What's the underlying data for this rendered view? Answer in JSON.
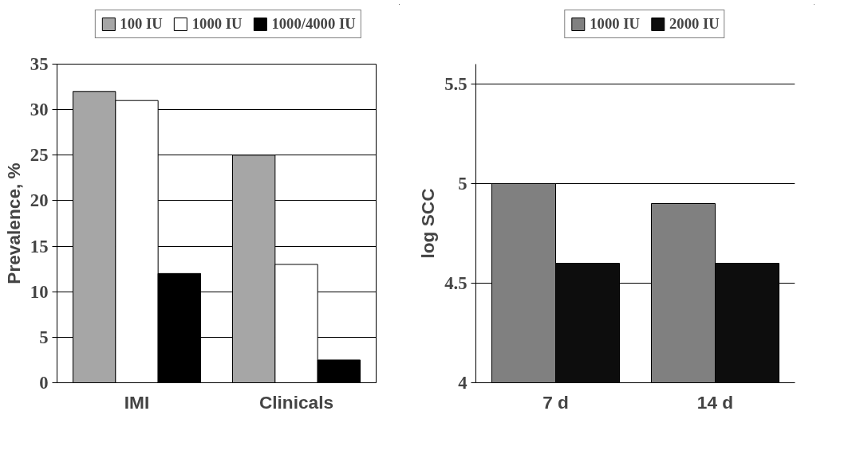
{
  "chart_data": [
    {
      "type": "bar",
      "ylabel": "Prevalence, %",
      "categories": [
        "IMI",
        "Clinicals"
      ],
      "ylim": [
        0,
        35
      ],
      "yticks": [
        0,
        5,
        10,
        15,
        20,
        25,
        30,
        35
      ],
      "grid": "y",
      "legend": "top",
      "series": [
        {
          "name": "100 IU",
          "color": "#a6a6a6",
          "values": [
            32,
            25
          ]
        },
        {
          "name": "1000 IU",
          "color": "#ffffff",
          "values": [
            31,
            13
          ]
        },
        {
          "name": "1000/4000 IU",
          "color": "#000000",
          "values": [
            12,
            2.5
          ]
        }
      ]
    },
    {
      "type": "bar",
      "ylabel": "log SCC",
      "categories": [
        "7 d",
        "14 d"
      ],
      "ylim": [
        4,
        5.6
      ],
      "yticks": [
        4,
        4.5,
        5,
        5.5
      ],
      "grid": "y",
      "legend": "top",
      "series": [
        {
          "name": "1000 IU",
          "color": "#808080",
          "values": [
            5.0,
            4.9
          ]
        },
        {
          "name": "2000 IU",
          "color": "#0d0d0d",
          "values": [
            4.6,
            4.6
          ]
        }
      ]
    }
  ]
}
